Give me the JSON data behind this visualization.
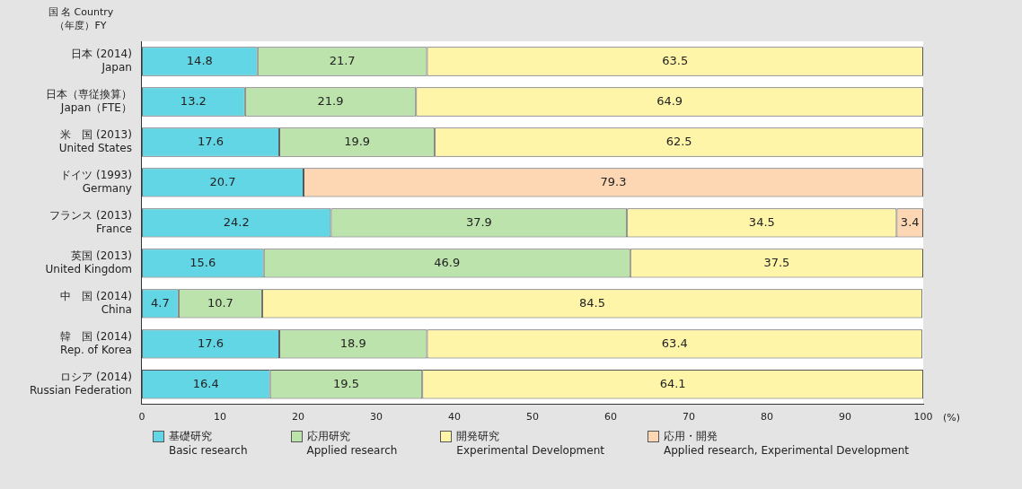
{
  "chart_data": {
    "type": "bar",
    "orientation": "horizontal",
    "stacked": true,
    "ylabel": "国 名 Country\n（年度）FY",
    "xlabel": "(%)",
    "categories": [
      "日本 (2014)\nJapan",
      "日本（専従換算）\nJapan（FTE）",
      "米　国 (2013)\nUnited States",
      "ドイツ (1993)\nGermany",
      "フランス (2013)\nFrance",
      "英国 (2013)\nUnited Kingdom",
      "中　国 (2014)\nChina",
      "韓　国 (2014)\nRep. of Korea",
      "ロシア (2014)\nRussian Federation"
    ],
    "series": [
      {
        "name": "基礎研究\nBasic research",
        "color": "#63d6e6",
        "values": [
          14.8,
          13.2,
          17.6,
          20.7,
          24.2,
          15.6,
          4.7,
          17.6,
          16.4
        ]
      },
      {
        "name": "応用研究\nApplied research",
        "color": "#bde3ad",
        "values": [
          21.7,
          21.9,
          19.9,
          null,
          37.9,
          46.9,
          10.7,
          18.9,
          19.5
        ]
      },
      {
        "name": "開発研究\nExperimental Development",
        "color": "#fff5a8",
        "values": [
          63.5,
          64.9,
          62.5,
          null,
          34.5,
          37.5,
          84.5,
          63.4,
          64.1
        ]
      },
      {
        "name": "応用・開発\nApplied research, Experimental Development",
        "color": "#fdd6b4",
        "values": [
          null,
          null,
          null,
          79.3,
          3.4,
          null,
          null,
          null,
          null
        ]
      }
    ],
    "xlim": [
      0,
      100
    ],
    "xticks": [
      0,
      10,
      20,
      30,
      40,
      50,
      60,
      70,
      80,
      90,
      100
    ],
    "grid": false,
    "legend": "bottom",
    "data_labels": true
  }
}
